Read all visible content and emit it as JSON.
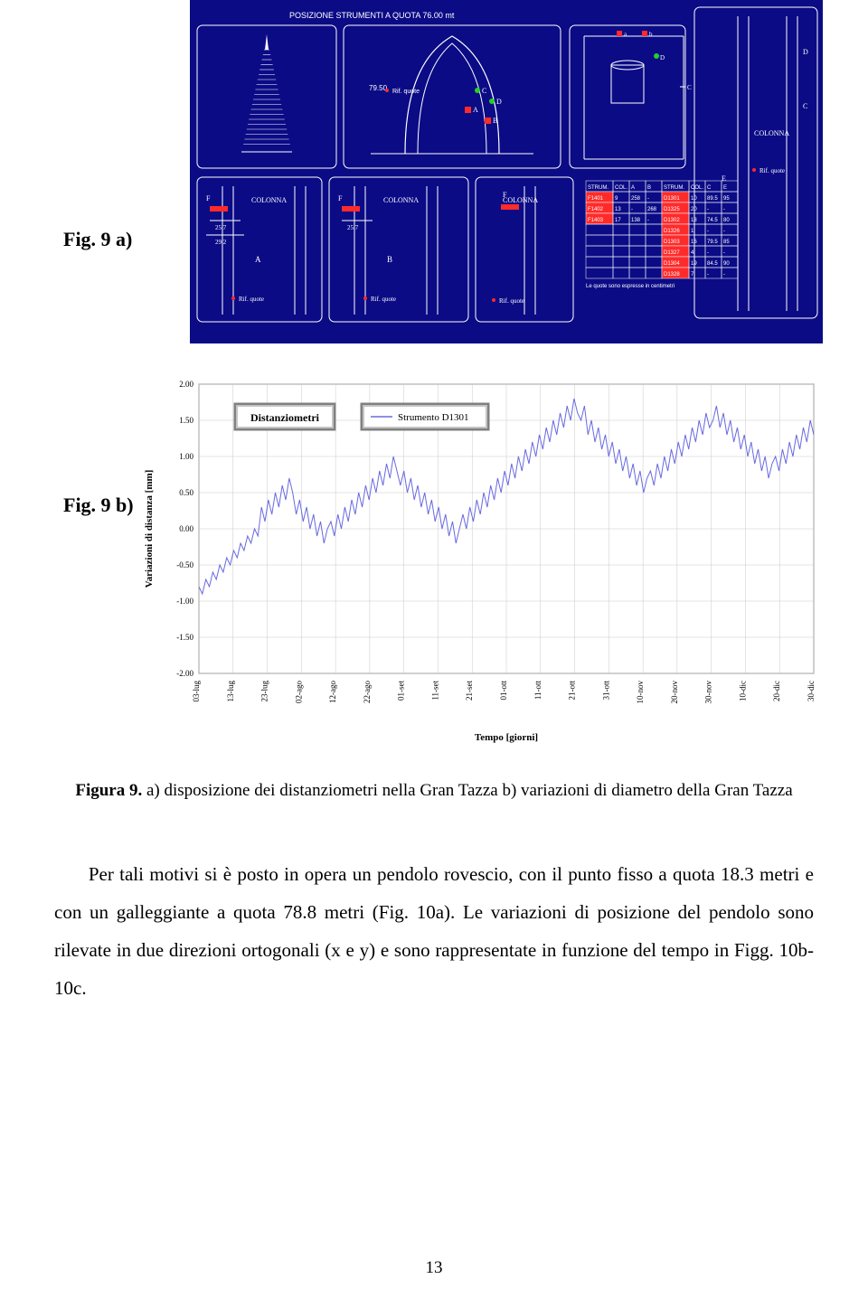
{
  "labels": {
    "fig_a": "Fig. 9 a)",
    "fig_b": "Fig. 9 b)"
  },
  "diagram": {
    "bg": "#0b0b86",
    "line": "#ffffff",
    "accent_red": "#ff2a2a",
    "accent_green": "#25d025",
    "title": "POSIZIONE STRUMENTI A QUOTA 76.00 mt",
    "colonna": "COLONNA",
    "rif_quote": "Rif. quote",
    "dim1": "25.7",
    "dim2": "29.2",
    "dim3": "79.50",
    "letters": [
      "A",
      "B",
      "C",
      "D",
      "E",
      "F"
    ],
    "table_head": [
      "STRUM.",
      "COL.",
      "A",
      "B",
      "STRUM.",
      "COL.",
      "C",
      "E"
    ],
    "table_rows": [
      [
        "F1401",
        "9",
        "258",
        "-",
        "D1301",
        "10",
        "89.5",
        "95"
      ],
      [
        "F1402",
        "13",
        "-",
        "268",
        "D1325",
        "20",
        "-",
        "-"
      ],
      [
        "F1403",
        "17",
        "138",
        "-",
        "D1302",
        "13",
        "74.5",
        "80"
      ],
      [
        "",
        "",
        "",
        "",
        "D1326",
        "1",
        "-",
        "-"
      ],
      [
        "",
        "",
        "",
        "",
        "D1303",
        "16",
        "79.5",
        "85"
      ],
      [
        "",
        "",
        "",
        "",
        "D1327",
        "4",
        "-",
        "-"
      ],
      [
        "",
        "",
        "",
        "",
        "D1304",
        "19",
        "84.5",
        "90"
      ],
      [
        "",
        "",
        "",
        "",
        "D1328",
        "7",
        "-",
        "-"
      ]
    ],
    "table_foot": "Le quote sono espresse in centimetri"
  },
  "chart": {
    "legend_box1": "Distanziometri",
    "legend_box2": "Strumento D1301",
    "xaxis_label": "Tempo [giorni]",
    "yaxis_label": "Variazioni di distanza [mm]",
    "bg": "#ffffff",
    "grid": "#c8c8c8",
    "major_grid": "#7a7a7a",
    "line_color": "#6a6ae0",
    "text_color": "#000000",
    "font_family": "Times New Roman",
    "title_fontsize": 12,
    "tick_fontsize": 9,
    "ylim": [
      -2.0,
      2.0
    ],
    "ytick_step": 0.5,
    "yticks": [
      "2.00",
      "1.50",
      "1.00",
      "0.50",
      "0.00",
      "-0.50",
      "-1.00",
      "-1.50",
      "-2.00"
    ],
    "xticks": [
      "03-lug",
      "13-lug",
      "23-lug",
      "02-ago",
      "12-ago",
      "22-ago",
      "01-set",
      "11-set",
      "21-set",
      "01-ott",
      "11-ott",
      "21-ott",
      "31-ott",
      "10-nov",
      "20-nov",
      "30-nov",
      "10-dic",
      "20-dic",
      "30-dic"
    ],
    "series": [
      [
        -0.8,
        -0.9,
        -0.7,
        -0.8,
        -0.6,
        -0.7,
        -0.5,
        -0.6,
        -0.4,
        -0.5,
        -0.3,
        -0.4,
        -0.2,
        -0.3,
        -0.1,
        -0.2,
        0.0,
        -0.1,
        0.3,
        0.1,
        0.4,
        0.2,
        0.5,
        0.3,
        0.6,
        0.4,
        0.7,
        0.5,
        0.2,
        0.4,
        0.1,
        0.3,
        0.0,
        0.2,
        -0.1,
        0.1,
        -0.2,
        0.0,
        0.1,
        -0.1,
        0.2,
        0.0,
        0.3,
        0.1,
        0.4,
        0.2,
        0.5,
        0.3,
        0.6,
        0.4,
        0.7,
        0.5,
        0.8,
        0.6,
        0.9,
        0.7,
        1.0,
        0.8,
        0.6,
        0.8,
        0.5,
        0.7,
        0.4,
        0.6,
        0.3,
        0.5,
        0.2,
        0.4,
        0.1,
        0.3,
        0.0,
        0.2,
        -0.1,
        0.1,
        -0.2,
        0.0,
        0.2,
        0.0,
        0.3,
        0.1,
        0.4,
        0.2,
        0.5,
        0.3,
        0.6,
        0.4,
        0.7,
        0.5,
        0.8,
        0.6,
        0.9,
        0.7,
        1.0,
        0.8,
        1.1,
        0.9,
        1.2,
        1.0,
        1.3,
        1.1,
        1.4,
        1.2,
        1.5,
        1.3,
        1.6,
        1.4,
        1.7,
        1.5,
        1.8,
        1.6,
        1.5,
        1.7,
        1.3,
        1.5,
        1.2,
        1.4,
        1.1,
        1.3,
        1.0,
        1.2,
        0.9,
        1.1,
        0.8,
        1.0,
        0.7,
        0.9,
        0.6,
        0.8,
        0.5,
        0.7,
        0.8,
        0.6,
        0.9,
        0.7,
        1.0,
        0.8,
        1.1,
        0.9,
        1.2,
        1.0,
        1.3,
        1.1,
        1.4,
        1.2,
        1.5,
        1.3,
        1.6,
        1.4,
        1.5,
        1.7,
        1.4,
        1.6,
        1.3,
        1.5,
        1.2,
        1.4,
        1.1,
        1.3,
        1.0,
        1.2,
        0.9,
        1.1,
        0.8,
        1.0,
        0.7,
        0.9,
        1.0,
        0.8,
        1.1,
        0.9,
        1.2,
        1.0,
        1.3,
        1.1,
        1.4,
        1.2,
        1.5,
        1.3
      ]
    ]
  },
  "caption": {
    "lead": "Figura 9.",
    "rest": " a) disposizione dei distanziometri nella Gran Tazza  b) variazioni di diametro della Gran Tazza"
  },
  "paragraph": "Per tali motivi si è posto in opera un pendolo rovescio, con il punto fisso a quota 18.3 metri e con un galleggiante a quota 78.8 metri (Fig. 10a). Le variazioni di posizione del pendolo sono rilevate in due direzioni ortogonali (x e y) e sono rappresentate in funzione del tempo in Figg. 10b-10c.",
  "page_number": "13"
}
